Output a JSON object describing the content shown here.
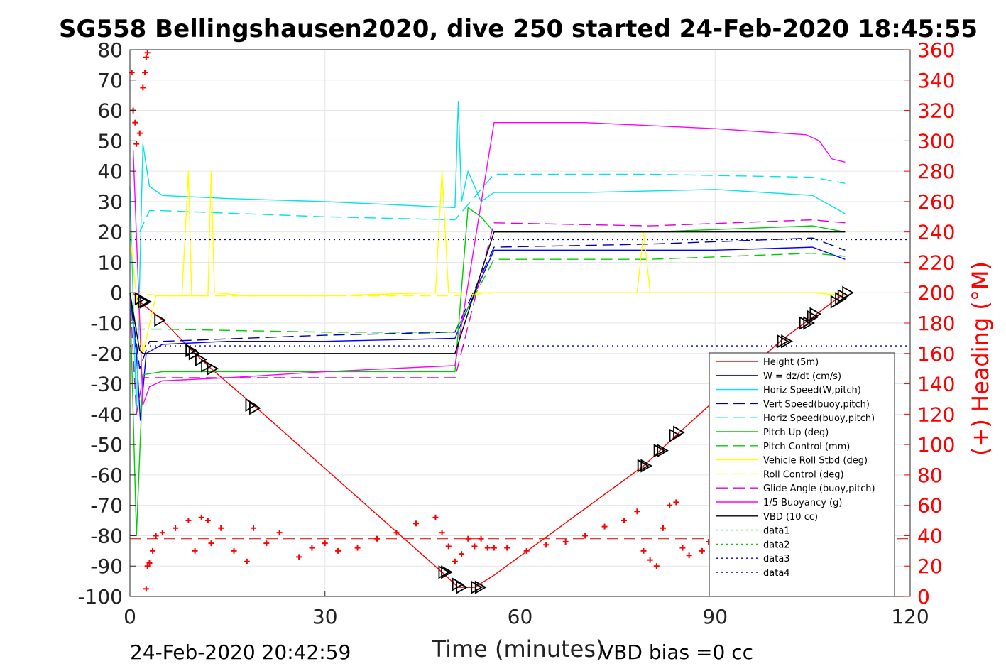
{
  "chart_data": {
    "type": "line",
    "title": "SG558 Bellingshausen2020, dive 250 started 24-Feb-2020 18:45:55",
    "xlabel": "Time (minutes)",
    "ylabel_right": "(+) Heading (°M)",
    "xlim": [
      0,
      120
    ],
    "ylim_left": [
      -100,
      80
    ],
    "ylim_right": [
      0,
      360
    ],
    "x_ticks": [
      "0",
      "30",
      "60",
      "90",
      "120"
    ],
    "y_left_ticks": [
      "80",
      "70",
      "60",
      "50",
      "40",
      "30",
      "20",
      "10",
      "0",
      "-10",
      "-20",
      "-30",
      "-40",
      "-50",
      "-60",
      "-70",
      "-80",
      "-90",
      "-100"
    ],
    "y_right_ticks": [
      "360",
      "340",
      "320",
      "300",
      "280",
      "260",
      "240",
      "220",
      "200",
      "180",
      "160",
      "140",
      "120",
      "100",
      "80",
      "60",
      "40",
      "20",
      "0"
    ],
    "grid": true,
    "legend_position": "lower-right",
    "footer_left": "24-Feb-2020 20:42:59",
    "footer_right": "VBD bias =0 cc",
    "series": [
      {
        "name": "Height (5m)",
        "color": "#ff0000",
        "style": "solid",
        "x": [
          0.5,
          1.5,
          5,
          9.5,
          12.5,
          19,
          48,
          50.5,
          53,
          56,
          79,
          84,
          100,
          105,
          110
        ],
        "y": [
          0,
          -3,
          -9,
          -19,
          -25,
          -37,
          -92,
          -97,
          -97,
          -93,
          -57,
          -47,
          -16,
          -8,
          0
        ]
      },
      {
        "name": "W = dz/dt (cm/s)",
        "color": "#0000ff",
        "style": "solid",
        "x": [
          0,
          1,
          1.6,
          2.5,
          5,
          15,
          30,
          50,
          52,
          56,
          70,
          90,
          105,
          110
        ],
        "y": [
          0,
          -20,
          -42,
          -20,
          -17,
          -16,
          -16,
          -15,
          -5,
          14,
          14,
          14,
          15,
          11
        ]
      },
      {
        "name": "Horiz Speed(W,pitch)",
        "color": "#00e5e5",
        "style": "solid",
        "x": [
          0,
          1,
          2,
          3,
          5,
          15,
          30,
          50,
          50.5,
          51,
          52,
          54,
          56,
          70,
          90,
          105,
          110
        ],
        "y": [
          35,
          -40,
          49,
          35,
          32,
          31,
          30,
          28,
          63,
          30,
          40,
          30,
          33,
          33,
          34,
          32,
          26
        ]
      },
      {
        "name": "Vert Speed(buoy,pitch)",
        "color": "#0000aa",
        "style": "dashed",
        "x": [
          0,
          1.5,
          3,
          5,
          30,
          50,
          56,
          80,
          105,
          110
        ],
        "y": [
          0,
          -25,
          -16,
          -16,
          -14,
          -13,
          15,
          16,
          18,
          14
        ]
      },
      {
        "name": "Horiz Speed(buoy,pitch)",
        "color": "#00e5e5",
        "style": "dashed",
        "x": [
          1.5,
          3,
          5,
          30,
          50,
          56,
          80,
          105,
          110
        ],
        "y": [
          20,
          27,
          27,
          25,
          24,
          39,
          39,
          38,
          36
        ]
      },
      {
        "name": "Pitch Up (deg)",
        "color": "#00cc00",
        "style": "solid",
        "x": [
          0,
          1,
          2,
          5,
          30,
          50,
          52,
          54,
          56,
          80,
          105,
          110
        ],
        "y": [
          0,
          -80,
          -27,
          -26,
          -26,
          -26,
          28,
          25,
          20,
          20,
          22,
          20
        ]
      },
      {
        "name": "Pitch Control (mm)",
        "color": "#00cc00",
        "style": "dashed",
        "x": [
          0,
          1,
          2,
          5,
          30,
          50,
          56,
          80,
          105,
          110
        ],
        "y": [
          0,
          -12,
          -12,
          -12,
          -13,
          -13,
          11,
          11,
          13,
          12
        ]
      },
      {
        "name": "Vehicle Roll Stbd (deg)",
        "color": "#ffff00",
        "style": "solid",
        "x": [
          0,
          1,
          2,
          4,
          8,
          9,
          9.5,
          10,
          12,
          12.5,
          13,
          18,
          30,
          47,
          48,
          49,
          50,
          52,
          56,
          78,
          79,
          80,
          90,
          105,
          110
        ],
        "y": [
          20,
          -1,
          -20,
          -1,
          -1,
          40,
          -1,
          -1,
          -1,
          40,
          0,
          -1,
          -1,
          0,
          40,
          0,
          0,
          0,
          0,
          0,
          20,
          0,
          0,
          0,
          -1
        ]
      },
      {
        "name": "Roll Control (deg)",
        "color": "#ffff00",
        "style": "dashed",
        "x": [
          0,
          5,
          30,
          50,
          56,
          80,
          105,
          110
        ],
        "y": [
          0,
          -1,
          -1,
          -1,
          0,
          0,
          0,
          0
        ]
      },
      {
        "name": "Glide Angle (buoy,pitch)",
        "color": "#dd00dd",
        "style": "dashed",
        "x": [
          0,
          1,
          2,
          5,
          30,
          50,
          56,
          80,
          105,
          110
        ],
        "y": [
          0,
          -40,
          -28,
          -28,
          -28,
          -28,
          23,
          22,
          24,
          23
        ]
      },
      {
        "name": "1/5 Buoyancy (g)",
        "color": "#ff00ff",
        "style": "solid",
        "x": [
          0.5,
          2,
          3,
          5,
          15,
          30,
          50,
          56,
          70,
          90,
          104,
          106,
          108,
          110
        ],
        "y": [
          47,
          -37,
          -31,
          -29,
          -28,
          -26,
          -24,
          56,
          56,
          54,
          52,
          50,
          44,
          43
        ]
      },
      {
        "name": "VBD (10 cc)",
        "color": "#000000",
        "style": "solid",
        "x": [
          0,
          1.5,
          2,
          50,
          56,
          110
        ],
        "y": [
          0,
          -19,
          -20,
          -20,
          20,
          20
        ]
      },
      {
        "name": "data1",
        "color": "#00cc00",
        "style": "dotted",
        "x": [],
        "y": []
      },
      {
        "name": "data2",
        "color": "#00cc00",
        "style": "dotted",
        "x": [],
        "y": []
      },
      {
        "name": "data3",
        "color": "#0000aa",
        "style": "dotted",
        "x": [
          0,
          120
        ],
        "y": [
          17.5,
          17.5
        ]
      },
      {
        "name": "data4",
        "color": "#0000aa",
        "style": "dotted",
        "x": [
          0,
          120
        ],
        "y": [
          -17.5,
          -17.5
        ]
      }
    ],
    "reference_lines": [
      {
        "color": "#cc0000",
        "style": "dashed",
        "y": -81
      }
    ],
    "heading_series": {
      "axis": "right",
      "color": "#ff0000",
      "marker": "+",
      "x": [
        0.3,
        0.5,
        0.8,
        1.0,
        1.5,
        2.0,
        2.3,
        2.5,
        2.7,
        2.5,
        2.7,
        3,
        3.5,
        4,
        5,
        7,
        9,
        10,
        11,
        12,
        12.5,
        14,
        16,
        18,
        19,
        21,
        23,
        26,
        28,
        30,
        32,
        35,
        38,
        41,
        44,
        47,
        48,
        49,
        50,
        51,
        52,
        53,
        54,
        55,
        56,
        58,
        61,
        64,
        67,
        70,
        73,
        76,
        78,
        79,
        80,
        81,
        82,
        83,
        84,
        85,
        86,
        88,
        89
      ],
      "y": [
        345,
        320,
        312,
        298,
        305,
        335,
        345,
        355,
        358,
        5,
        20,
        22,
        30,
        40,
        42,
        45,
        50,
        30,
        52,
        50,
        35,
        45,
        30,
        23,
        45,
        35,
        42,
        26,
        32,
        35,
        30,
        32,
        38,
        42,
        48,
        52,
        42,
        33,
        23,
        28,
        38,
        33,
        38,
        32,
        32,
        32,
        30,
        34,
        36,
        40,
        46,
        50,
        56,
        30,
        24,
        20,
        45,
        60,
        62,
        32,
        27,
        30,
        36
      ]
    },
    "markers": {
      "type": "triangle",
      "color": "#000000",
      "x": [
        1.5,
        2,
        2.3,
        4.5,
        9.3,
        9.8,
        10.8,
        11.7,
        12.6,
        18.5,
        19.1,
        48.2,
        48.6,
        50.3,
        50.9,
        53.2,
        53.8,
        78.8,
        79.3,
        81.3,
        81.8,
        83.7,
        84.3,
        100.3,
        100.9,
        103.7,
        104.3,
        104.9,
        105.3,
        108.5,
        109.2,
        109.6,
        110.3
      ],
      "y": [
        -2,
        -3,
        -3,
        -9,
        -19,
        -20,
        -22,
        -24,
        -25,
        -37,
        -38,
        -92,
        -92,
        -96,
        -97,
        -97,
        -97,
        -57,
        -57,
        -52,
        -52,
        -47,
        -46,
        -16,
        -16,
        -10,
        -10,
        -8,
        -7,
        -3,
        -2,
        -1,
        0
      ]
    }
  }
}
